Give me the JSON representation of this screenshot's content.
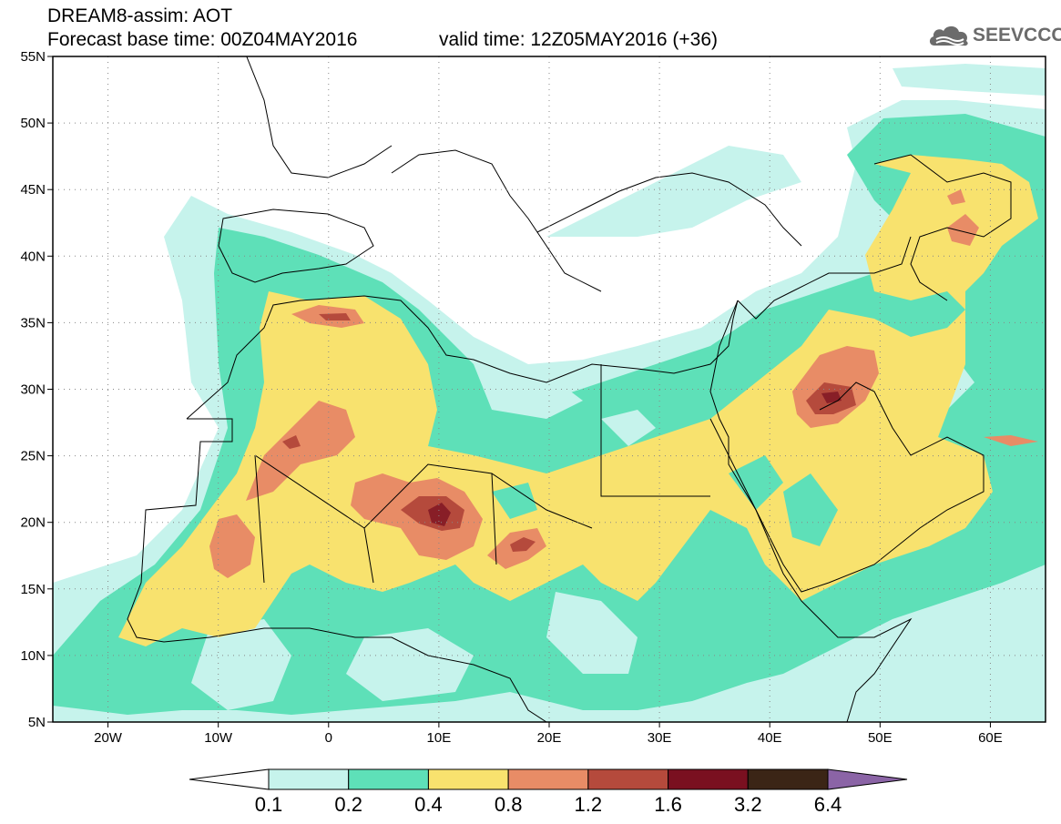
{
  "header": {
    "title_line1": "DREAM8-assim: AOT",
    "title_line2": "Forecast base time: 00Z04MAY2016",
    "valid_time": "valid time: 12Z05MAY2016 (+36)",
    "logo_text": "SEEVCCC",
    "logo_icon": "cloud-logo-icon"
  },
  "map": {
    "lat_labels": [
      "55N",
      "50N",
      "45N",
      "40N",
      "35N",
      "30N",
      "25N",
      "20N",
      "15N",
      "10N",
      "5N"
    ],
    "lon_labels": [
      "20W",
      "10W",
      "0",
      "10E",
      "20E",
      "30E",
      "40E",
      "50E",
      "60E"
    ],
    "lat_range": [
      5,
      55
    ],
    "lon_range": [
      -25,
      65
    ],
    "grid": "dotted"
  },
  "colorbar": {
    "labels": [
      "0.1",
      "0.2",
      "0.4",
      "0.8",
      "1.2",
      "1.6",
      "3.2",
      "6.4"
    ],
    "colors": [
      "#ffffff",
      "#c6f3ec",
      "#5ee0b8",
      "#f8e26e",
      "#e88c66",
      "#b54a3c",
      "#7a1020",
      "#3b2516",
      "#8b64a6"
    ]
  },
  "colors": {
    "c02": "#c6f3ec",
    "c04": "#5ee0b8",
    "c08": "#f8e26e",
    "c12": "#e88c66",
    "c16": "#b54a3c",
    "c32": "#7a1020"
  }
}
